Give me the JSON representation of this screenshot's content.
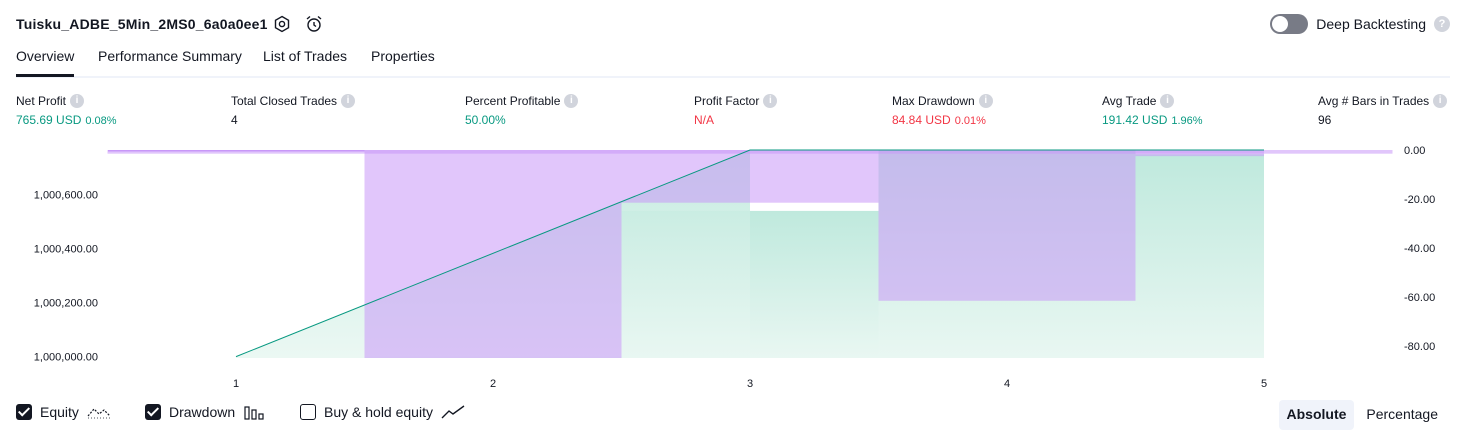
{
  "header": {
    "strategy_name": "Tuisku_ADBE_5Min_2MS0_6a0a0ee1",
    "settings_icon": "gear-icon",
    "alert_icon": "alarm-clock-icon",
    "deep_backtesting_label": "Deep Backtesting",
    "deep_backtesting_enabled": false,
    "help_glyph": "?"
  },
  "tabs": [
    {
      "label": "Overview",
      "active": true
    },
    {
      "label": "Performance Summary",
      "active": false
    },
    {
      "label": "List of Trades",
      "active": false
    },
    {
      "label": "Properties",
      "active": false
    }
  ],
  "metrics": [
    {
      "label": "Net Profit",
      "value": "765.69 USD",
      "pct": "0.08%",
      "color": "#089981"
    },
    {
      "label": "Total Closed Trades",
      "value": "4",
      "pct": "",
      "color": "#131722"
    },
    {
      "label": "Percent Profitable",
      "value": "50.00%",
      "pct": "",
      "color": "#089981"
    },
    {
      "label": "Profit Factor",
      "value": "N/A",
      "pct": "",
      "color": "#f23645"
    },
    {
      "label": "Max Drawdown",
      "value": "84.84 USD",
      "pct": "0.01%",
      "color": "#f23645"
    },
    {
      "label": "Avg Trade",
      "value": "191.42 USD",
      "pct": "1.96%",
      "color": "#089981"
    },
    {
      "label": "Avg # Bars in Trades",
      "value": "96",
      "pct": "",
      "color": "#131722"
    }
  ],
  "chart_data": {
    "type": "area",
    "x_ticks": [
      "1",
      "2",
      "3",
      "4",
      "5"
    ],
    "left_axis": {
      "ticks": [
        "1,000,600.00",
        "1,000,400.00",
        "1,000,200.00",
        "1,000,000.00"
      ],
      "tick_values": [
        1000600,
        1000400,
        1000200,
        1000000
      ],
      "range": [
        999995,
        1000765.69
      ]
    },
    "right_axis": {
      "ticks": [
        "0.00",
        "-20.00",
        "-40.00",
        "-60.00",
        "-80.00"
      ],
      "tick_values": [
        0,
        -20,
        -40,
        -60,
        -80
      ],
      "range": [
        -84.84,
        0
      ]
    },
    "series": [
      {
        "name": "Equity",
        "points": [
          {
            "x": 1,
            "y": 1000000
          },
          {
            "x": 3,
            "y": 1000765.69
          },
          {
            "x": 5,
            "y": 1000765.69
          }
        ],
        "steps": [
          {
            "x0": 1.5,
            "x1": 2.5,
            "y": 1000000
          },
          {
            "x0": 2.5,
            "x1": 3.5,
            "y": 1000540
          },
          {
            "x0": 3.5,
            "x1": 4.5,
            "y": 1000765.69
          },
          {
            "x0": 4.5,
            "x1": 5.0,
            "y": 1000750
          }
        ],
        "color": "#089981"
      },
      {
        "name": "Drawdown",
        "steps": [
          {
            "x0": 1.5,
            "x1": 2.5,
            "y": -84.84
          },
          {
            "x0": 2.5,
            "x1": 3.5,
            "y": -21.5
          },
          {
            "x0": 3.5,
            "x1": 4.5,
            "y": -61.5
          },
          {
            "x0": 4.5,
            "x1": 5.0,
            "y": -2.5
          }
        ],
        "baseline": {
          "x0": 0.5,
          "x1": 5.5,
          "y": -1.5
        },
        "color": "#c898f8"
      }
    ],
    "legend": [
      {
        "label": "Equity",
        "checked": true,
        "icon": "equity-line-icon"
      },
      {
        "label": "Drawdown",
        "checked": true,
        "icon": "drawdown-bars-icon"
      },
      {
        "label": "Buy & hold equity",
        "checked": false,
        "icon": "buy-hold-line-icon"
      }
    ],
    "grid": false
  },
  "mode": {
    "options": [
      {
        "label": "Absolute",
        "active": true
      },
      {
        "label": "Percentage",
        "active": false
      }
    ]
  }
}
